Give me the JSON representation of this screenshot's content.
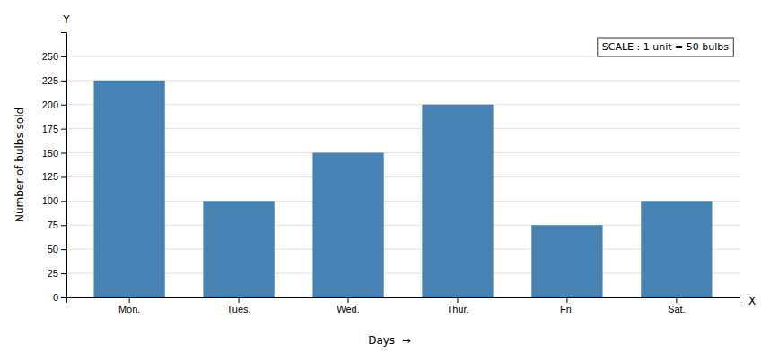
{
  "chart_data": {
    "type": "bar",
    "categories": [
      "Mon.",
      "Tues.",
      "Wed.",
      "Thur.",
      "Fri.",
      "Sat."
    ],
    "values": [
      225,
      100,
      150,
      200,
      75,
      100
    ],
    "color": "steelblue",
    "ylim": [
      0,
      275
    ],
    "yticks": [
      0,
      25,
      50,
      75,
      100,
      125,
      150,
      175,
      200,
      225,
      250
    ],
    "ylabel": "Number of bulbs sold",
    "xlabel": "Days  →",
    "annotations": [
      "SCALE : 1 unit = 50 bulbs",
      "Y",
      "X"
    ],
    "grid": true
  }
}
